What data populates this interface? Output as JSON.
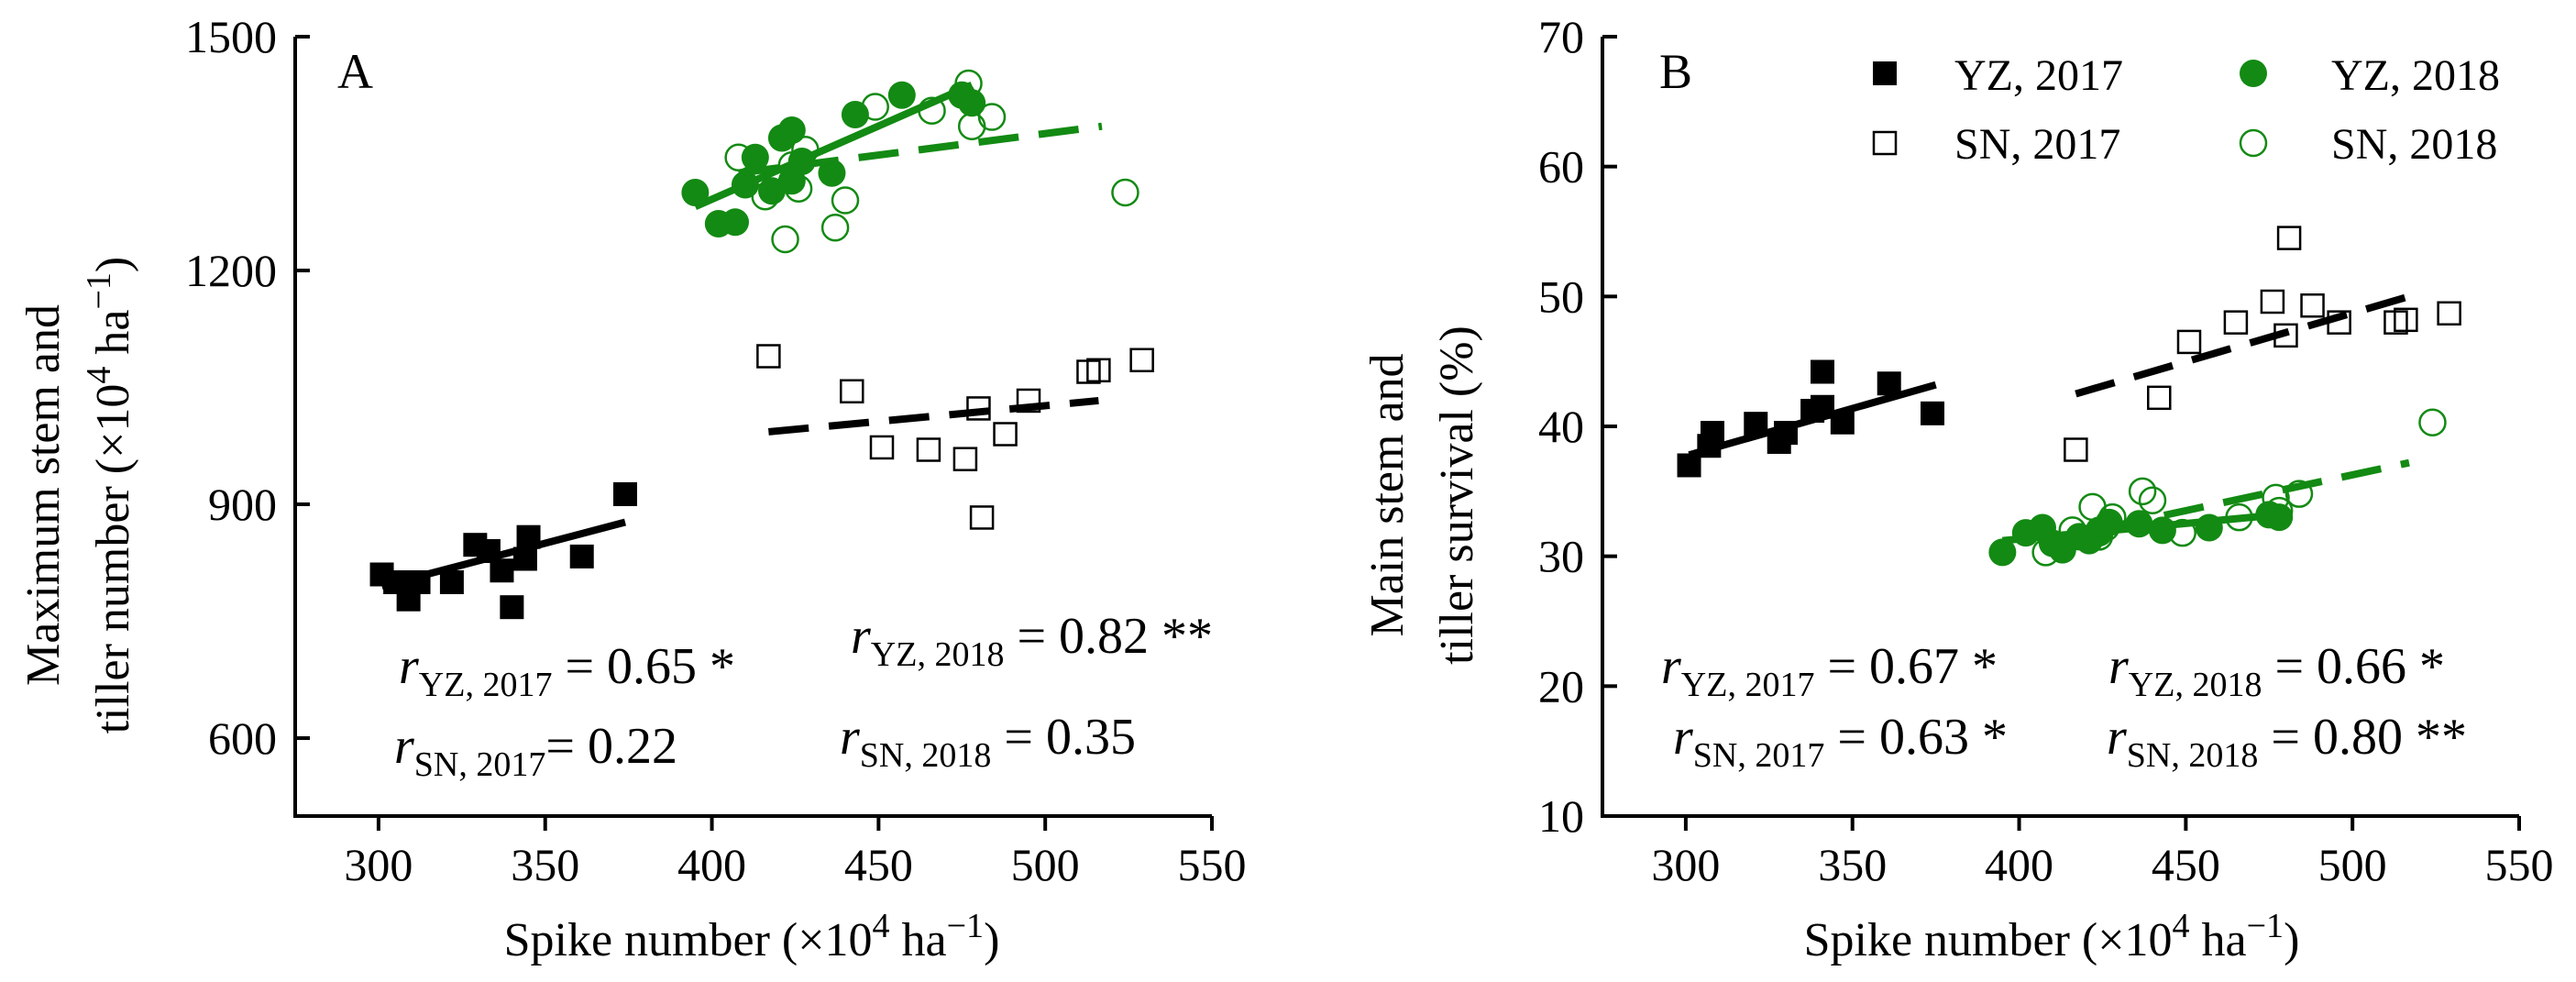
{
  "chart_data": [
    {
      "type": "scatter",
      "panel_label": "A",
      "ylabel_line1": "Maximum stem and",
      "ylabel_line2": "tiller number (×10",
      "ylabel_sup": "4",
      "ylabel_unit": " ha",
      "ylabel_unit_sup": "−1",
      "ylabel_close": ")",
      "xlabel": "Spike number (×10",
      "xlabel_sup": "4",
      "xlabel_unit": " ha",
      "xlabel_unit_sup": "−1",
      "xlabel_close": ")",
      "xlim": [
        275,
        550
      ],
      "ylim": [
        500,
        1500
      ],
      "xticks": [
        300,
        350,
        400,
        450,
        500,
        550
      ],
      "yticks": [
        600,
        900,
        1200,
        1500
      ],
      "series": [
        {
          "name": "YZ, 2017",
          "color": "#000000",
          "marker": "square",
          "filled": true,
          "points": [
            [
              301,
              810
            ],
            [
              305,
              800
            ],
            [
              309,
              778
            ],
            [
              312,
              800
            ],
            [
              322,
              800
            ],
            [
              329,
              848
            ],
            [
              333,
              840
            ],
            [
              337,
              815
            ],
            [
              340,
              768
            ],
            [
              344,
              830
            ],
            [
              345,
              858
            ],
            [
              361,
              833
            ],
            [
              374,
              913
            ]
          ],
          "fit": {
            "x": [
              301,
              374
            ],
            "y": [
              795,
              877
            ],
            "dashed": false
          }
        },
        {
          "name": "SN, 2017",
          "color": "#000000",
          "marker": "square",
          "filled": false,
          "points": [
            [
              417,
              1090
            ],
            [
              442,
              1045
            ],
            [
              451,
              973
            ],
            [
              465,
              970
            ],
            [
              476,
              958
            ],
            [
              480,
              1023
            ],
            [
              481,
              883
            ],
            [
              488,
              990
            ],
            [
              495,
              1033
            ],
            [
              513,
              1070
            ],
            [
              516,
              1072
            ],
            [
              529,
              1085
            ]
          ],
          "fit": {
            "x": [
              417,
              516
            ],
            "y": [
              993,
              1033
            ],
            "dashed": true
          }
        },
        {
          "name": "YZ, 2018",
          "color": "#138a13",
          "marker": "circle",
          "filled": true,
          "points": [
            [
              395,
              1300
            ],
            [
              402,
              1260
            ],
            [
              407,
              1262
            ],
            [
              410,
              1310
            ],
            [
              413,
              1345
            ],
            [
              418,
              1302
            ],
            [
              421,
              1370
            ],
            [
              424,
              1380
            ],
            [
              424,
              1315
            ],
            [
              427,
              1340
            ],
            [
              436,
              1325
            ],
            [
              443,
              1400
            ],
            [
              457,
              1425
            ],
            [
              475,
              1425
            ],
            [
              478,
              1415
            ]
          ],
          "fit": {
            "x": [
              395,
              478
            ],
            "y": [
              1282,
              1438
            ],
            "dashed": false
          }
        },
        {
          "name": "SN, 2018",
          "color": "#138a13",
          "marker": "circle",
          "filled": false,
          "points": [
            [
              408,
              1345
            ],
            [
              416,
              1295
            ],
            [
              422,
              1240
            ],
            [
              424,
              1335
            ],
            [
              426,
              1305
            ],
            [
              428,
              1355
            ],
            [
              437,
              1255
            ],
            [
              440,
              1290
            ],
            [
              449,
              1410
            ],
            [
              466,
              1405
            ],
            [
              477,
              1440
            ],
            [
              478,
              1385
            ],
            [
              484,
              1397
            ],
            [
              524,
              1300
            ]
          ],
          "fit": {
            "x": [
              408,
              517
            ],
            "y": [
              1325,
              1385
            ],
            "dashed": true
          }
        }
      ],
      "annotations": [
        {
          "r": "r",
          "sub": "YZ, 2017",
          "text": " = 0.65 *"
        },
        {
          "r": "r",
          "sub": "SN, 2017",
          "text": "= 0.22"
        },
        {
          "r": "r",
          "sub": "YZ, 2018",
          "text": " = 0.82 **"
        },
        {
          "r": "r",
          "sub": "SN, 2018",
          "text": " = 0.35"
        }
      ]
    },
    {
      "type": "scatter",
      "panel_label": "B",
      "ylabel_line1": "Main stem and",
      "ylabel_line2": "tiller survival (%)",
      "xlabel": "Spike number (×10",
      "xlabel_sup": "4",
      "xlabel_unit": " ha",
      "xlabel_unit_sup": "−1",
      "xlabel_close": ")",
      "xlim": [
        275,
        550
      ],
      "ylim": [
        10,
        70
      ],
      "xticks": [
        300,
        350,
        400,
        450,
        500,
        550
      ],
      "yticks": [
        10,
        20,
        30,
        40,
        50,
        60,
        70
      ],
      "legend": [
        {
          "label": "YZ, 2017",
          "color": "#000000",
          "marker": "square",
          "filled": true
        },
        {
          "label": "YZ, 2018",
          "color": "#138a13",
          "marker": "circle",
          "filled": true
        },
        {
          "label": "SN, 2017",
          "color": "#000000",
          "marker": "square",
          "filled": false
        },
        {
          "label": "SN, 2018",
          "color": "#138a13",
          "marker": "circle",
          "filled": false
        }
      ],
      "series": [
        {
          "name": "YZ, 2017",
          "color": "#000000",
          "marker": "square",
          "filled": true,
          "points": [
            [
              301,
              37
            ],
            [
              307,
              38.5
            ],
            [
              308,
              39.5
            ],
            [
              321,
              40.2
            ],
            [
              328,
              38.8
            ],
            [
              330,
              39.5
            ],
            [
              338,
              41.2
            ],
            [
              341,
              44.2
            ],
            [
              341,
              41.5
            ],
            [
              347,
              40.3
            ],
            [
              361,
              43.3
            ],
            [
              374,
              41
            ]
          ],
          "fit": {
            "x": [
              301,
              375
            ],
            "y": [
              37.8,
              43.2
            ],
            "dashed": false
          }
        },
        {
          "name": "SN, 2017",
          "color": "#000000",
          "marker": "square",
          "filled": false,
          "points": [
            [
              417,
              38.2
            ],
            [
              442,
              42.2
            ],
            [
              451,
              46.5
            ],
            [
              465,
              48
            ],
            [
              476,
              49.6
            ],
            [
              480,
              47
            ],
            [
              481,
              54.5
            ],
            [
              488,
              49.3
            ],
            [
              496,
              48
            ],
            [
              513,
              48
            ],
            [
              516,
              48.2
            ],
            [
              529,
              48.7
            ]
          ],
          "fit": {
            "x": [
              417,
              517
            ],
            "y": [
              42.5,
              50
            ],
            "dashed": true
          }
        },
        {
          "name": "YZ, 2018",
          "color": "#138a13",
          "marker": "circle",
          "filled": true,
          "points": [
            [
              395,
              30.3
            ],
            [
              402,
              31.8
            ],
            [
              407,
              32.2
            ],
            [
              410,
              31
            ],
            [
              413,
              30.5
            ],
            [
              418,
              31.5
            ],
            [
              421,
              31.2
            ],
            [
              424,
              32
            ],
            [
              424,
              31.8
            ],
            [
              427,
              32.6
            ],
            [
              436,
              32.5
            ],
            [
              443,
              32
            ],
            [
              457,
              32.2
            ],
            [
              475,
              33.2
            ],
            [
              478,
              33
            ]
          ],
          "fit": {
            "x": [
              395,
              478
            ],
            "y": [
              31.2,
              33.2
            ],
            "dashed": false
          }
        },
        {
          "name": "SN, 2018",
          "color": "#138a13",
          "marker": "circle",
          "filled": false,
          "points": [
            [
              408,
              30.3
            ],
            [
              416,
              32
            ],
            [
              422,
              33.8
            ],
            [
              424,
              31.5
            ],
            [
              426,
              32.2
            ],
            [
              428,
              33
            ],
            [
              437,
              35
            ],
            [
              440,
              34.3
            ],
            [
              449,
              31.8
            ],
            [
              466,
              33
            ],
            [
              477,
              34.5
            ],
            [
              478,
              33.5
            ],
            [
              484,
              34.8
            ],
            [
              524,
              40.3
            ]
          ],
          "fit": {
            "x": [
              408,
              517
            ],
            "y": [
              31.2,
              37.2
            ],
            "dashed": true
          }
        }
      ],
      "annotations": [
        {
          "r": "r",
          "sub": "YZ, 2017",
          "text": " = 0.67 *"
        },
        {
          "r": "r",
          "sub": "YZ, 2018",
          "text": " = 0.66 *"
        },
        {
          "r": "r",
          "sub": "SN, 2017",
          "text": " = 0.63 *"
        },
        {
          "r": "r",
          "sub": "SN, 2018",
          "text": " = 0.80 **"
        }
      ]
    }
  ]
}
